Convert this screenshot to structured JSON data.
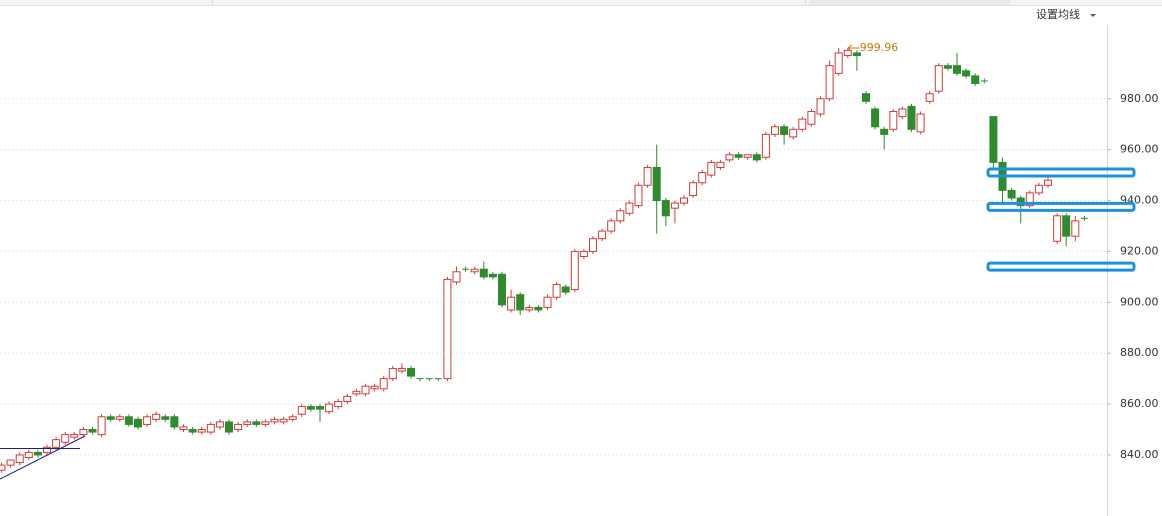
{
  "chart_data": {
    "type": "candlestick",
    "menu_label": "设置均线",
    "up_color": "#d23b3b",
    "down_color": "#2e8b2e",
    "grid": true,
    "ylim": [
      816,
      1009
    ],
    "yticks": [
      {
        "value": 840,
        "label": "840.00"
      },
      {
        "value": 860,
        "label": "860.00"
      },
      {
        "value": 880,
        "label": "880.00"
      },
      {
        "value": 900,
        "label": "900.00"
      },
      {
        "value": 920,
        "label": "920.00"
      },
      {
        "value": 940,
        "label": "940.00"
      },
      {
        "value": 960,
        "label": "960.00"
      },
      {
        "value": 980,
        "label": "980.00"
      }
    ],
    "max_label": {
      "value": 999.96,
      "label": "999.96"
    },
    "levels": [
      951,
      937.5,
      914
    ],
    "level_color": "#1e90e0",
    "open": [
      834,
      836,
      837,
      839,
      841,
      841,
      843,
      845,
      847,
      848,
      850,
      848,
      855,
      854,
      855,
      854,
      852,
      854,
      855,
      855,
      850,
      850,
      849,
      849,
      851,
      853,
      850,
      852,
      853,
      852,
      853,
      853,
      854,
      856,
      859,
      859,
      857,
      859,
      861,
      864,
      864,
      866,
      866,
      870,
      873,
      874,
      870,
      870,
      870,
      870,
      908,
      913,
      912,
      913,
      911,
      911,
      897,
      903,
      897,
      898,
      898,
      902,
      906,
      905,
      918,
      920,
      925,
      928,
      932,
      935,
      938,
      946,
      953,
      940,
      937,
      939,
      942,
      947,
      950,
      953,
      956,
      958,
      957,
      958,
      957,
      966,
      969,
      965,
      968,
      970,
      974,
      980,
      990,
      997,
      998,
      982,
      976,
      968,
      968,
      973,
      977,
      967,
      979,
      983,
      993,
      993,
      991,
      989,
      987,
      973,
      955,
      944,
      941,
      938,
      943,
      946,
      924,
      934,
      926,
      933
    ],
    "high": [
      837,
      838,
      841,
      842,
      842,
      844,
      847,
      849,
      849,
      851,
      851,
      856,
      856,
      856,
      856,
      855,
      856,
      857,
      856,
      856,
      852,
      851,
      851,
      853,
      854,
      854,
      853,
      854,
      854,
      854,
      855,
      855,
      856,
      860,
      860,
      860,
      861,
      862,
      864,
      866,
      868,
      868,
      871,
      875,
      876,
      875,
      870,
      870,
      870,
      910,
      914,
      914,
      914,
      916,
      912,
      912,
      905,
      904,
      899,
      899,
      903,
      908,
      907,
      921,
      921,
      926,
      929,
      933,
      937,
      940,
      947,
      954,
      962,
      941,
      940,
      942,
      948,
      952,
      956,
      956,
      959,
      959,
      958,
      959,
      967,
      970,
      970,
      969,
      973,
      976,
      981,
      995,
      1000,
      999.96,
      999,
      983,
      977,
      969,
      976,
      977,
      978,
      975,
      983,
      994,
      994,
      998,
      992,
      990,
      988,
      973,
      957,
      945,
      942,
      944,
      947,
      949,
      935,
      935,
      934,
      934
    ],
    "low": [
      833,
      835,
      836,
      838,
      839,
      840,
      842,
      844,
      846,
      847,
      848,
      847,
      853,
      853,
      851,
      850,
      851,
      853,
      853,
      850,
      849,
      848,
      848,
      848,
      850,
      848,
      849,
      851,
      851,
      851,
      852,
      852,
      853,
      855,
      857,
      853,
      856,
      858,
      860,
      863,
      863,
      865,
      865,
      869,
      872,
      870,
      869,
      869,
      869,
      869,
      907,
      912,
      911,
      909,
      909,
      898,
      896,
      895,
      896,
      896,
      897,
      901,
      903,
      904,
      917,
      919,
      924,
      927,
      931,
      934,
      937,
      945,
      927,
      930,
      931,
      938,
      941,
      946,
      949,
      952,
      955,
      956,
      956,
      955,
      956,
      965,
      962,
      964,
      967,
      969,
      973,
      979,
      989,
      996,
      991,
      978,
      968,
      960,
      967,
      972,
      967,
      966,
      978,
      982,
      991,
      989,
      988,
      985,
      986,
      952,
      939,
      940,
      931,
      937,
      942,
      945,
      923,
      922,
      924,
      932
    ],
    "close": [
      836,
      838,
      840,
      841,
      840,
      843,
      846,
      848,
      848,
      850,
      849,
      855,
      854,
      855,
      852,
      851,
      855,
      856,
      854,
      851,
      851,
      849,
      850,
      852,
      853,
      849,
      852,
      853,
      852,
      853,
      854,
      854,
      855,
      859,
      858,
      858,
      860,
      861,
      863,
      865,
      867,
      867,
      870,
      874,
      874,
      871,
      870,
      870,
      870,
      909,
      912,
      913,
      913,
      910,
      910,
      899,
      902,
      897,
      898,
      897,
      902,
      907,
      904,
      920,
      920,
      925,
      928,
      932,
      936,
      939,
      946,
      953,
      940,
      934,
      939,
      941,
      947,
      951,
      955,
      955,
      958,
      957,
      958,
      956,
      966,
      969,
      966,
      968,
      972,
      975,
      980,
      993,
      998,
      999,
      997,
      979,
      969,
      966,
      975,
      976,
      968,
      974,
      982,
      993,
      992,
      990,
      989,
      986,
      987,
      955,
      944,
      941,
      938,
      943,
      946,
      948,
      934,
      926,
      932,
      933
    ]
  }
}
